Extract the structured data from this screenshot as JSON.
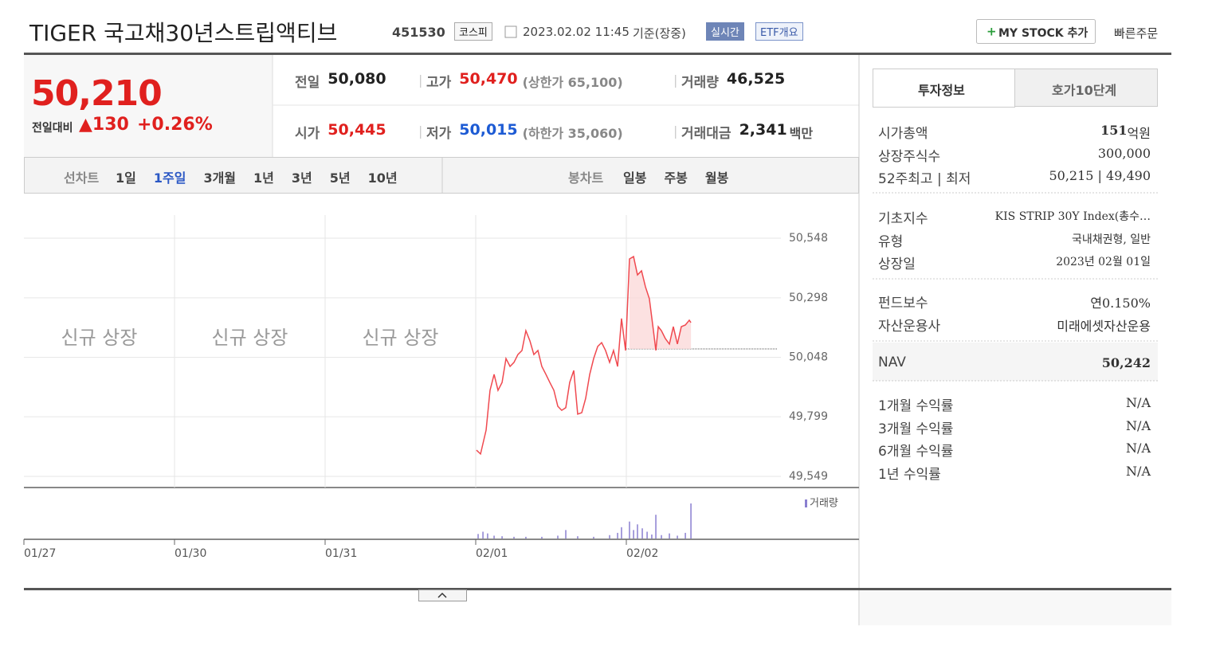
{
  "header": {
    "title": "TIGER 국고채30년스트립액티브",
    "code": "451530",
    "market": "코스피",
    "datetime": "2023.02.02 11:45",
    "basis": "기준(장중)",
    "realtime": "실시간",
    "etf_overview": "ETF개요",
    "my_stock": "MY STOCK 추가",
    "quick_order": "빠른주문"
  },
  "price": {
    "current": "50,210",
    "change_label": "전일대비",
    "change": "130",
    "change_rate": "+0.26%"
  },
  "summary": [
    [
      {
        "label": "전일",
        "value": "50,080"
      },
      {
        "label": "고가",
        "value": "50,470",
        "note": "(상한가 65,100)"
      },
      {
        "label": "거래량",
        "value": "46,525"
      }
    ],
    [
      {
        "label": "시가",
        "value": "50,445"
      },
      {
        "label": "저가",
        "value": "50,015",
        "note": "(하한가 35,060)"
      },
      {
        "label": "거래대금",
        "value": "2,341",
        "unit": "백만"
      }
    ]
  ],
  "chart_tabs": {
    "line_label": "선차트",
    "line": [
      "1일",
      "1주일",
      "3개월",
      "1년",
      "3년",
      "5년",
      "10년"
    ],
    "selected": 1,
    "candle_label": "봉차트",
    "candle": [
      "일봉",
      "주봉",
      "월봉"
    ]
  },
  "chart": {
    "type": "line",
    "color": "#f0494f",
    "overlay_labels": [
      "신규 상장",
      "신규 상장",
      "신규 상장"
    ],
    "xlim": [
      0,
      5.545
    ],
    "xticks": [
      {
        "value": 0,
        "label": "01/27"
      },
      {
        "value": 1,
        "label": "01/30"
      },
      {
        "value": 2,
        "label": "01/31"
      },
      {
        "value": 3,
        "label": "02/01"
      },
      {
        "value": 4,
        "label": "02/02"
      }
    ],
    "ylim": [
      49549,
      50548
    ],
    "yticks": [
      {
        "value": 50548,
        "label": "50,548"
      },
      {
        "value": 50298,
        "label": "50,298"
      },
      {
        "value": 50048,
        "label": "50,048"
      },
      {
        "value": 49799,
        "label": "49,799"
      },
      {
        "value": 49549,
        "label": "49,549"
      }
    ],
    "x": [
      3.005,
      3.032,
      3.069,
      3.095,
      3.122,
      3.148,
      3.175,
      3.201,
      3.228,
      3.254,
      3.28,
      3.307,
      3.333,
      3.36,
      3.386,
      3.413,
      3.439,
      3.466,
      3.492,
      3.519,
      3.545,
      3.571,
      3.598,
      3.624,
      3.651,
      3.677,
      3.704,
      3.73,
      3.757,
      3.783,
      3.81,
      3.836,
      3.862,
      3.889,
      3.915,
      3.942,
      3.968,
      3.995,
      4.021,
      4.048,
      4.074,
      4.101,
      4.127,
      4.153,
      4.18,
      4.196,
      4.212,
      4.233,
      4.259,
      4.286,
      4.312,
      4.339,
      4.365,
      4.392,
      4.418,
      4.429
    ],
    "values": [
      49659,
      49643,
      49743,
      49910,
      49977,
      49910,
      49943,
      50043,
      50010,
      50027,
      50060,
      50077,
      50160,
      50117,
      50060,
      50077,
      50010,
      49977,
      49943,
      49910,
      49843,
      49826,
      49837,
      49943,
      49993,
      49810,
      49816,
      49876,
      49977,
      50043,
      50094,
      50110,
      50077,
      50027,
      50077,
      50010,
      50211,
      50077,
      50461,
      50471,
      50394,
      50411,
      50344,
      50294,
      50160,
      50077,
      50177,
      50160,
      50127,
      50104,
      50177,
      50104,
      50177,
      50184,
      50204,
      50194
    ],
    "volume": {
      "name": "거래량",
      "color": "#8a7fd0",
      "x": [
        3.016,
        3.048,
        3.079,
        3.122,
        3.175,
        3.254,
        3.333,
        3.439,
        3.545,
        3.598,
        3.677,
        3.783,
        3.889,
        3.942,
        3.968,
        4.021,
        4.048,
        4.074,
        4.106,
        4.138,
        4.169,
        4.196,
        4.233,
        4.286,
        4.339,
        4.392,
        4.429
      ],
      "values": [
        800,
        1200,
        900,
        500,
        400,
        300,
        300,
        300,
        500,
        1500,
        400,
        300,
        600,
        1000,
        2000,
        3000,
        1500,
        2500,
        1800,
        1200,
        700,
        4200,
        600,
        900,
        500,
        1000,
        6200
      ]
    }
  },
  "invest_info": {
    "tabs": [
      "투자정보",
      "호가10단계"
    ],
    "groups": [
      [
        {
          "label": "시가총액",
          "value": "151",
          "unit": "억원"
        },
        {
          "label": "상장주식수",
          "value": "300,000"
        },
        {
          "label": "52주최고 | 최저",
          "value": "50,215 | 49,490"
        }
      ],
      [
        {
          "label": "기초지수",
          "value": "KIS STRIP 30Y Index(총수…"
        },
        {
          "label": "유형",
          "value": "국내채권형, 일반"
        },
        {
          "label": "상장일",
          "value": "2023년 02월 01일"
        }
      ],
      [
        {
          "label": "펀드보수",
          "value": "연0.150%"
        },
        {
          "label": "자산운용사",
          "value": "미래에셋자산운용"
        }
      ],
      [
        {
          "label": "NAV",
          "value": "50,242"
        }
      ],
      [
        {
          "label": "1개월 수익률",
          "value": "N/A"
        },
        {
          "label": "3개월 수익률",
          "value": "N/A"
        },
        {
          "label": "6개월 수익률",
          "value": "N/A"
        },
        {
          "label": "1년 수익률",
          "value": "N/A"
        }
      ]
    ]
  }
}
